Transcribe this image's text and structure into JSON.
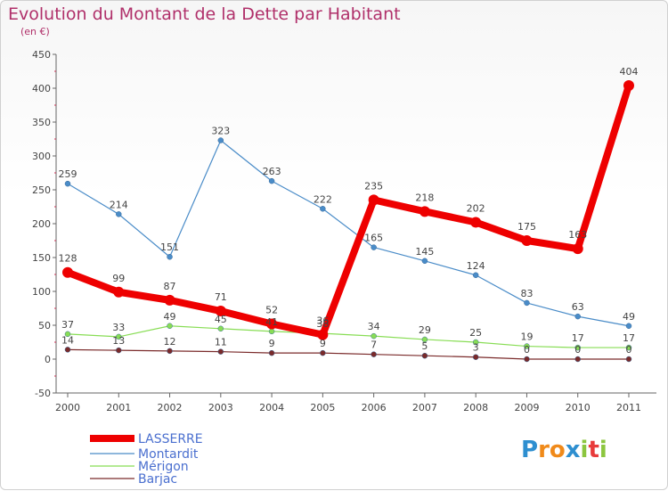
{
  "chart_data": {
    "type": "line",
    "title": "Evolution du Montant de la Dette par Habitant",
    "subtitle": "(en €)",
    "xlabel": "",
    "ylabel": "",
    "ylim": [
      -50,
      450
    ],
    "yticks": [
      -50,
      0,
      50,
      100,
      150,
      200,
      250,
      300,
      350,
      400,
      450
    ],
    "categories": [
      "2000",
      "2001",
      "2002",
      "2003",
      "2004",
      "2005",
      "2006",
      "2007",
      "2008",
      "2009",
      "2010",
      "2011"
    ],
    "grid": false,
    "legend_position": "bottom-left",
    "series": [
      {
        "name": "LASSERRE",
        "color": "#ee0000",
        "values": [
          128,
          99,
          87,
          71,
          52,
          36,
          235,
          218,
          202,
          175,
          163,
          404
        ]
      },
      {
        "name": "Montardit",
        "color": "#4a8cc8",
        "values": [
          259,
          214,
          151,
          323,
          263,
          222,
          165,
          145,
          124,
          83,
          63,
          49
        ]
      },
      {
        "name": "Mérigon",
        "color": "#88dd55",
        "values": [
          37,
          33,
          49,
          45,
          41,
          38,
          34,
          29,
          25,
          19,
          17,
          17
        ]
      },
      {
        "name": "Barjac",
        "color": "#7a2a2a",
        "values": [
          14,
          13,
          12,
          11,
          9,
          9,
          7,
          5,
          3,
          0,
          0,
          0
        ]
      }
    ]
  },
  "logo": {
    "letters": [
      {
        "ch": "P",
        "color": "#2e8fd0"
      },
      {
        "ch": "r",
        "color": "#f08a1a"
      },
      {
        "ch": "o",
        "color": "#f08a1a"
      },
      {
        "ch": "x",
        "color": "#2e8fd0"
      },
      {
        "ch": "i",
        "color": "#8cc63f"
      },
      {
        "ch": "t",
        "color": "#e83b3b"
      },
      {
        "ch": "i",
        "color": "#8cc63f"
      }
    ]
  }
}
